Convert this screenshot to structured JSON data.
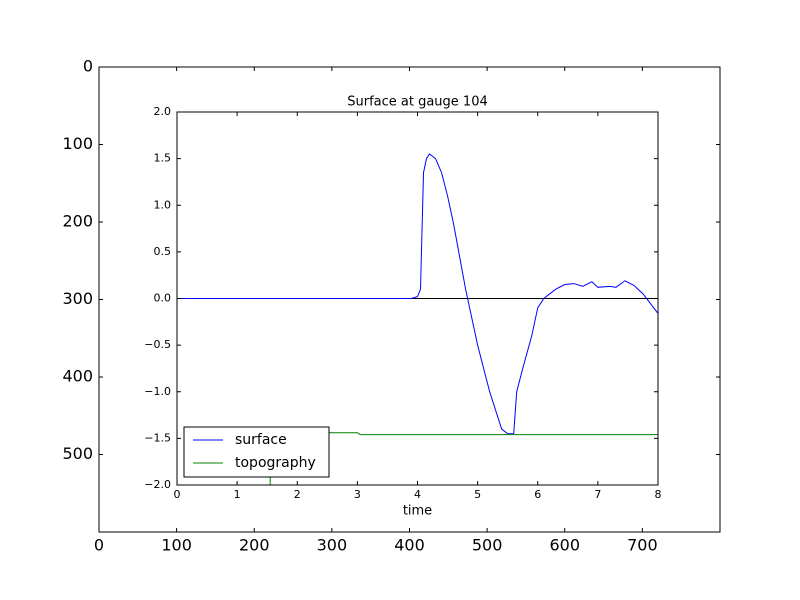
{
  "chart_data": [
    {
      "type": "image",
      "xlim": [
        0,
        800
      ],
      "ylim": [
        600,
        0
      ],
      "xticks": [
        0,
        100,
        200,
        300,
        400,
        500,
        600,
        700
      ],
      "yticks": [
        0,
        100,
        200,
        300,
        400,
        500
      ]
    },
    {
      "type": "line",
      "title": "Surface at gauge 104",
      "x_label": "time",
      "xlim": [
        0,
        8
      ],
      "ylim": [
        -2,
        2
      ],
      "xticks": [
        0,
        1,
        2,
        3,
        4,
        5,
        6,
        7,
        8
      ],
      "yticks": [
        {
          "value": -2,
          "label": "−2.0"
        },
        {
          "value": -1.5,
          "label": "−1.5"
        },
        {
          "value": -1,
          "label": "−1.0"
        },
        {
          "value": -0.5,
          "label": "−0.5"
        },
        {
          "value": 0,
          "label": "0.0"
        },
        {
          "value": 0.5,
          "label": "0.5"
        },
        {
          "value": 1,
          "label": "1.0"
        },
        {
          "value": 1.5,
          "label": "1.5"
        },
        {
          "value": 2,
          "label": "2.0"
        }
      ],
      "hline": {
        "value": 0,
        "color": "#000000"
      },
      "legend": "lower left",
      "series": [
        {
          "name": "surface",
          "color": "#0000ff",
          "x": [
            0,
            3.9,
            4.0,
            4.05,
            4.1,
            4.15,
            4.2,
            4.3,
            4.4,
            4.5,
            4.6,
            4.7,
            4.8,
            4.9,
            5.0,
            5.2,
            5.4,
            5.5,
            5.6,
            5.65,
            5.75,
            5.9,
            6.0,
            6.1,
            6.3,
            6.45,
            6.6,
            6.75,
            6.9,
            7.0,
            7.2,
            7.3,
            7.45,
            7.6,
            7.75,
            8.0
          ],
          "values": [
            0,
            0,
            0.02,
            0.1,
            1.35,
            1.5,
            1.55,
            1.5,
            1.35,
            1.1,
            0.8,
            0.45,
            0.1,
            -0.2,
            -0.5,
            -1.0,
            -1.4,
            -1.45,
            -1.45,
            -1.0,
            -0.75,
            -0.4,
            -0.1,
            0.0,
            0.1,
            0.15,
            0.16,
            0.13,
            0.18,
            0.12,
            0.13,
            0.12,
            0.19,
            0.14,
            0.05,
            -0.16
          ]
        },
        {
          "name": "topography",
          "color": "#008000",
          "x": [
            1.55,
            1.55,
            3.0,
            3.05,
            8.0
          ],
          "values": [
            -2,
            -1.44,
            -1.44,
            -1.46,
            -1.46
          ]
        }
      ]
    }
  ]
}
